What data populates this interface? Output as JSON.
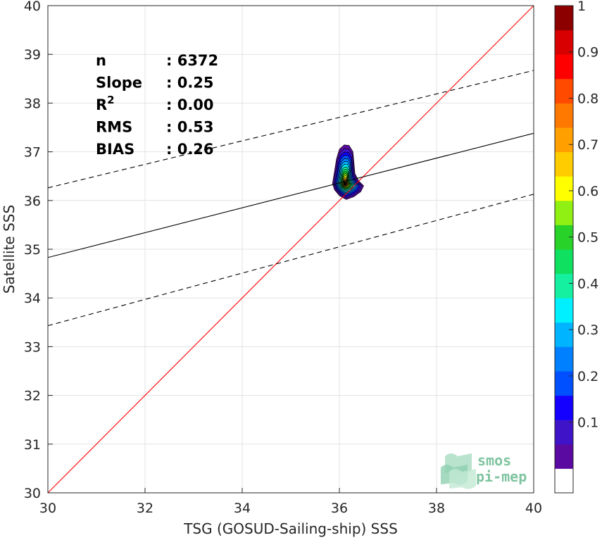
{
  "chart_data": {
    "type": "heatmap",
    "xlabel": "TSG (GOSUD-Sailing-ship) SSS",
    "ylabel": "Satellite SSS",
    "xlim": [
      30,
      40
    ],
    "ylim": [
      30,
      40
    ],
    "xticks": [
      30,
      32,
      34,
      36,
      38,
      40
    ],
    "yticks": [
      30,
      31,
      32,
      33,
      34,
      35,
      36,
      37,
      38,
      39,
      40
    ],
    "grid": true,
    "stats": [
      {
        "key": "n",
        "value": ": 6372"
      },
      {
        "key": "Slope",
        "value": ": 0.25"
      },
      {
        "key": "R",
        "sup": "2",
        "value": ": 0.00"
      },
      {
        "key": "RMS",
        "value": ": 0.53"
      },
      {
        "key": "BIAS",
        "value": ": 0.26"
      }
    ],
    "lines": {
      "identity": {
        "x": [
          30,
          40
        ],
        "y": [
          30,
          40
        ],
        "color": "#ff0000"
      },
      "regression": {
        "x": [
          30,
          40
        ],
        "y": [
          34.83,
          37.38
        ],
        "color": "#000000"
      },
      "upper_bound": {
        "x": [
          30,
          40
        ],
        "y": [
          36.26,
          38.67
        ],
        "color": "#000000",
        "dash": true
      },
      "lower_bound": {
        "x": [
          30,
          40
        ],
        "y": [
          33.43,
          36.13
        ],
        "color": "#000000",
        "dash": true
      }
    },
    "density": {
      "center": [
        36.12,
        36.34
      ],
      "levels": [
        0.05,
        0.1,
        0.15,
        0.2,
        0.25,
        0.3,
        0.35,
        0.4,
        0.45,
        0.5,
        0.55,
        0.6,
        0.65,
        0.7,
        0.75,
        0.8,
        0.85,
        0.9,
        0.95
      ],
      "outer_contour": [
        [
          35.86,
          36.35
        ],
        [
          35.9,
          36.6
        ],
        [
          35.94,
          36.85
        ],
        [
          36.0,
          37.05
        ],
        [
          36.1,
          37.14
        ],
        [
          36.2,
          37.13
        ],
        [
          36.28,
          37.0
        ],
        [
          36.3,
          36.78
        ],
        [
          36.32,
          36.55
        ],
        [
          36.4,
          36.4
        ],
        [
          36.5,
          36.3
        ],
        [
          36.44,
          36.18
        ],
        [
          36.3,
          36.08
        ],
        [
          36.14,
          36.02
        ],
        [
          36.0,
          36.1
        ],
        [
          35.9,
          36.22
        ]
      ]
    },
    "colorbar": {
      "ticks": [
        "0.1",
        "0.2",
        "0.3",
        "0.4",
        "0.5",
        "0.6",
        "0.7",
        "0.8",
        "0.9",
        "1"
      ],
      "colors": [
        "#ffffff",
        "#5a0aa0",
        "#3f14c8",
        "#1400ff",
        "#0050ff",
        "#0080ff",
        "#00b4ff",
        "#00f0ff",
        "#14f0a0",
        "#10e060",
        "#28d228",
        "#90f014",
        "#ffff00",
        "#ffcc00",
        "#ffa000",
        "#ff7800",
        "#ff4a00",
        "#ff0000",
        "#d80000",
        "#8c0000"
      ]
    },
    "logo": {
      "line1": "smos",
      "line2": "pi-mep"
    }
  }
}
